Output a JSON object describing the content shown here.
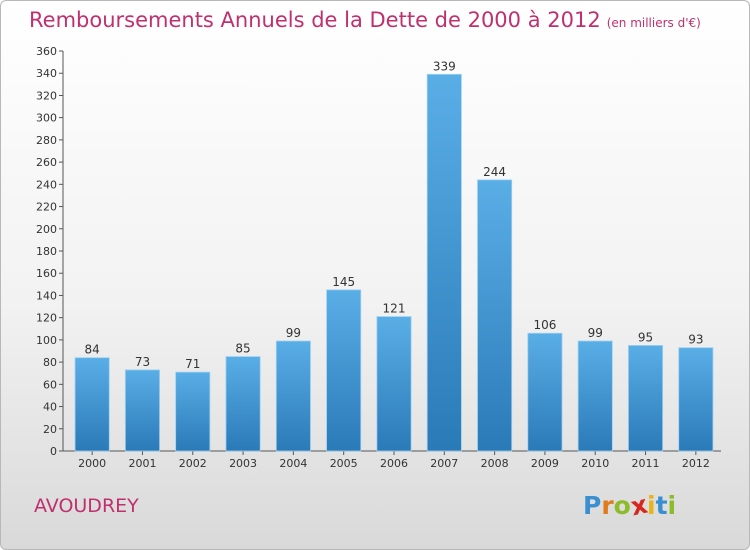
{
  "header": {
    "title": "Remboursements Annuels de la Dette de 2000 à 2012",
    "unit": "(en milliers d'€)"
  },
  "footer": {
    "town": "AVOUDREY",
    "logo": "Proxiti"
  },
  "colors": {
    "title": "#c0306e",
    "bar_top": "#5aaee6",
    "bar_bottom": "#2a7ab8",
    "logo_letters": [
      "#3a8fd0",
      "#e07a1a",
      "#8dbb2a",
      "#d6281f",
      "#e8b41a",
      "#3a8fd0",
      "#8dbb2a"
    ]
  },
  "chart_data": {
    "type": "bar",
    "title": "Remboursements Annuels de la Dette de 2000 à 2012",
    "ylabel": "",
    "xlabel": "",
    "categories": [
      "2000",
      "2001",
      "2002",
      "2003",
      "2004",
      "2005",
      "2006",
      "2007",
      "2008",
      "2009",
      "2010",
      "2011",
      "2012"
    ],
    "values": [
      84,
      73,
      71,
      85,
      99,
      145,
      121,
      339,
      244,
      106,
      99,
      95,
      93
    ],
    "ylim": [
      0,
      360
    ],
    "ytick_step": 20,
    "grid": false,
    "data_labels": true
  }
}
